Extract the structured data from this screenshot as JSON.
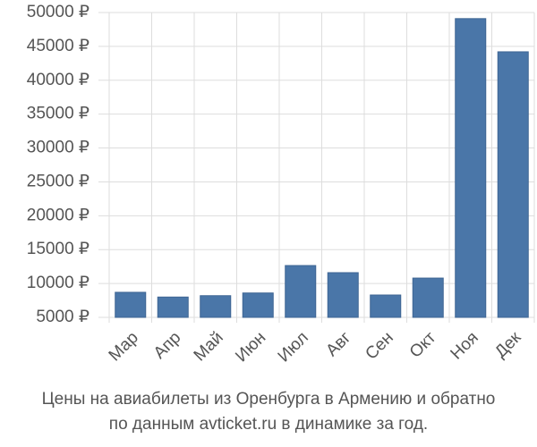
{
  "chart_data": {
    "type": "bar",
    "title": [
      "Цены на авиабилеты из Оренбурга в Армению и обратно",
      "по данным avticket.ru в динамике за год."
    ],
    "categories": [
      "Мар",
      "Апр",
      "Май",
      "Июн",
      "Июл",
      "Авг",
      "Сен",
      "Окт",
      "Ноя",
      "Дек"
    ],
    "values": [
      8700,
      8000,
      8200,
      8600,
      12650,
      11600,
      8300,
      10800,
      49100,
      44200
    ],
    "color": "#4a76a8",
    "ylim": [
      5000,
      50000
    ],
    "yticks": [
      {
        "value": 5000,
        "label": "5000 ₽"
      },
      {
        "value": 10000,
        "label": "10000 ₽"
      },
      {
        "value": 15000,
        "label": "15000 ₽"
      },
      {
        "value": 20000,
        "label": "20000 ₽"
      },
      {
        "value": 25000,
        "label": "25000 ₽"
      },
      {
        "value": 30000,
        "label": "30000 ₽"
      },
      {
        "value": 35000,
        "label": "35000 ₽"
      },
      {
        "value": 40000,
        "label": "40000 ₽"
      },
      {
        "value": 45000,
        "label": "45000 ₽"
      },
      {
        "value": 50000,
        "label": "50000 ₽"
      }
    ],
    "grid": true
  }
}
